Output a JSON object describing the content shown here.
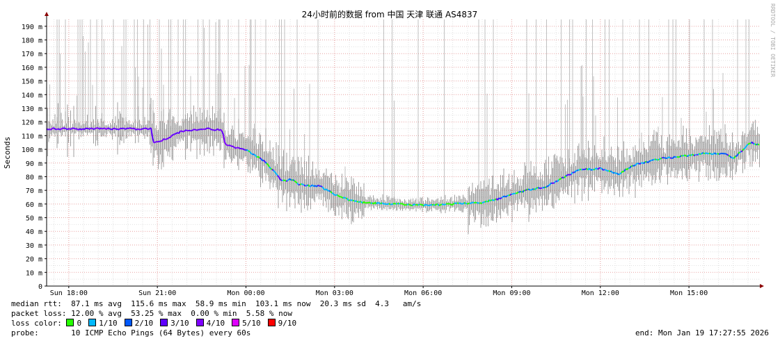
{
  "chart_data": {
    "type": "line",
    "title": "24小时前的数据 from 中国 天津 联通 AS4837",
    "ylabel": "Seconds",
    "side_label": "RRDTOOL / TOBI OETIKER",
    "ylim": [
      0,
      195
    ],
    "y_ticks": [
      {
        "v": 0,
        "label": "0"
      },
      {
        "v": 10,
        "label": "10 m"
      },
      {
        "v": 20,
        "label": "20 m"
      },
      {
        "v": 30,
        "label": "30 m"
      },
      {
        "v": 40,
        "label": "40 m"
      },
      {
        "v": 50,
        "label": "50 m"
      },
      {
        "v": 60,
        "label": "60 m"
      },
      {
        "v": 70,
        "label": "70 m"
      },
      {
        "v": 80,
        "label": "80 m"
      },
      {
        "v": 90,
        "label": "90 m"
      },
      {
        "v": 100,
        "label": "100 m"
      },
      {
        "v": 110,
        "label": "110 m"
      },
      {
        "v": 120,
        "label": "120 m"
      },
      {
        "v": 130,
        "label": "130 m"
      },
      {
        "v": 140,
        "label": "140 m"
      },
      {
        "v": 150,
        "label": "150 m"
      },
      {
        "v": 160,
        "label": "160 m"
      },
      {
        "v": 170,
        "label": "170 m"
      },
      {
        "v": 180,
        "label": "180 m"
      },
      {
        "v": 190,
        "label": "190 m"
      }
    ],
    "xlim_hours": [
      17.25,
      41.4
    ],
    "x_ticks": [
      {
        "h": 18,
        "label": "Sun 18:00"
      },
      {
        "h": 21,
        "label": "Sun 21:00"
      },
      {
        "h": 24,
        "label": "Mon 00:00"
      },
      {
        "h": 27,
        "label": "Mon 03:00"
      },
      {
        "h": 30,
        "label": "Mon 06:00"
      },
      {
        "h": 33,
        "label": "Mon 09:00"
      },
      {
        "h": 36,
        "label": "Mon 12:00"
      },
      {
        "h": 39,
        "label": "Mon 15:00"
      }
    ],
    "median_rtt_ms": [
      {
        "h": 17.25,
        "v": 115
      },
      {
        "h": 18,
        "v": 115
      },
      {
        "h": 19,
        "v": 115
      },
      {
        "h": 20,
        "v": 115
      },
      {
        "h": 20.8,
        "v": 115
      },
      {
        "h": 20.85,
        "v": 105
      },
      {
        "h": 21.2,
        "v": 107
      },
      {
        "h": 21.8,
        "v": 113
      },
      {
        "h": 22.5,
        "v": 115
      },
      {
        "h": 23.2,
        "v": 114
      },
      {
        "h": 23.3,
        "v": 103
      },
      {
        "h": 24,
        "v": 100
      },
      {
        "h": 24.7,
        "v": 90
      },
      {
        "h": 25.2,
        "v": 77
      },
      {
        "h": 25.6,
        "v": 78
      },
      {
        "h": 25.8,
        "v": 74
      },
      {
        "h": 26.5,
        "v": 73
      },
      {
        "h": 27,
        "v": 67
      },
      {
        "h": 27.5,
        "v": 63
      },
      {
        "h": 28,
        "v": 61
      },
      {
        "h": 29,
        "v": 60
      },
      {
        "h": 30,
        "v": 59
      },
      {
        "h": 31,
        "v": 60
      },
      {
        "h": 32,
        "v": 61
      },
      {
        "h": 32.6,
        "v": 64
      },
      {
        "h": 33.3,
        "v": 69
      },
      {
        "h": 34.2,
        "v": 73
      },
      {
        "h": 34.8,
        "v": 80
      },
      {
        "h": 35.3,
        "v": 85
      },
      {
        "h": 36,
        "v": 86
      },
      {
        "h": 36.6,
        "v": 82
      },
      {
        "h": 37.2,
        "v": 89
      },
      {
        "h": 38,
        "v": 93
      },
      {
        "h": 38.8,
        "v": 95
      },
      {
        "h": 39.4,
        "v": 97
      },
      {
        "h": 40.2,
        "v": 97
      },
      {
        "h": 40.5,
        "v": 93
      },
      {
        "h": 41.1,
        "v": 105
      },
      {
        "h": 41.4,
        "v": 103
      }
    ],
    "stats": {
      "median_rtt": "median rtt:  87.1 ms avg  115.6 ms max  58.9 ms min  103.1 ms now  20.3 ms sd  4.3   am/s",
      "packet_loss": "packet loss: 12.00 % avg  53.25 % max  0.00 % min  5.58 % now",
      "loss_color_label": "loss color:",
      "loss_legend": [
        {
          "label": "0",
          "color": "#26ff00"
        },
        {
          "label": "1/10",
          "color": "#00b8ff"
        },
        {
          "label": "2/10",
          "color": "#0059ff"
        },
        {
          "label": "3/10",
          "color": "#5e00ff"
        },
        {
          "label": "4/10",
          "color": "#7e00ff"
        },
        {
          "label": "5/10",
          "color": "#dd00ff"
        },
        {
          "label": "9/10",
          "color": "#ff0000"
        }
      ],
      "probe": "probe:       10 ICMP Echo Pings (64 Bytes) every 60s",
      "end": "end: Mon Jan 19 17:27:55 2026"
    },
    "colors": {
      "grid_minor": "#e0e0e0",
      "grid_major": "#e8a0a0",
      "axis": "#000000",
      "arrow": "#8b0000",
      "smoke": "#999999"
    }
  }
}
